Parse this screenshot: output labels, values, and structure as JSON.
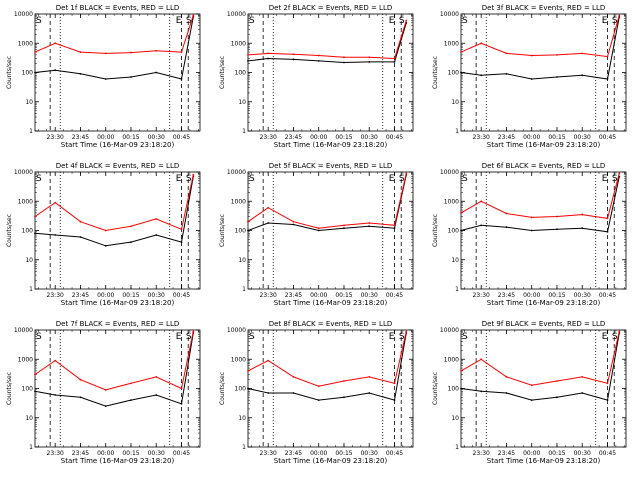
{
  "figure": {
    "ylabel": "Counts/sec",
    "xlabel": "Start Time (16-Mar-09 23:18:20)",
    "y_tick_labels": [
      "1",
      "10",
      "100",
      "1000",
      "10000"
    ],
    "x_tick_labels": [
      "23:30",
      "23:45",
      "00:00",
      "00:15",
      "00:30",
      "00:45"
    ],
    "colors": {
      "events": "#000000",
      "lld": "#ff0000"
    }
  },
  "chart_data": [
    {
      "type": "line",
      "title": "Det 1f BLACK = Events, RED = LLD",
      "yscale": "log",
      "ylim": [
        1,
        10000
      ],
      "x": [
        "23:18",
        "23:30",
        "23:45",
        "00:00",
        "00:15",
        "00:30",
        "00:45",
        "00:52"
      ],
      "series": [
        {
          "name": "Events",
          "values": [
            100,
            120,
            90,
            60,
            70,
            100,
            60,
            8000
          ]
        },
        {
          "name": "LLD",
          "values": [
            500,
            1000,
            500,
            450,
            480,
            550,
            500,
            9000
          ]
        }
      ],
      "markers": [
        "S",
        "E",
        "S"
      ]
    },
    {
      "type": "line",
      "title": "Det 2f BLACK = Events, RED = LLD",
      "yscale": "log",
      "ylim": [
        1,
        10000
      ],
      "x": [
        "23:18",
        "23:30",
        "23:45",
        "00:00",
        "00:15",
        "00:30",
        "00:45",
        "00:52"
      ],
      "series": [
        {
          "name": "Events",
          "values": [
            250,
            300,
            280,
            250,
            220,
            230,
            230,
            5000
          ]
        },
        {
          "name": "LLD",
          "values": [
            400,
            450,
            420,
            380,
            330,
            330,
            300,
            6000
          ]
        }
      ],
      "markers": [
        "S",
        "E",
        "S"
      ]
    },
    {
      "type": "line",
      "title": "Det 3f BLACK = Events, RED = LLD",
      "yscale": "log",
      "ylim": [
        1,
        10000
      ],
      "x": [
        "23:18",
        "23:30",
        "23:45",
        "00:00",
        "00:15",
        "00:30",
        "00:45",
        "00:52"
      ],
      "series": [
        {
          "name": "Events",
          "values": [
            100,
            80,
            90,
            60,
            70,
            80,
            60,
            8000
          ]
        },
        {
          "name": "LLD",
          "values": [
            500,
            1000,
            450,
            380,
            400,
            450,
            350,
            9000
          ]
        }
      ],
      "markers": [
        "S",
        "E",
        "S"
      ]
    },
    {
      "type": "line",
      "title": "Det 4f BLACK = Events, RED = LLD",
      "yscale": "log",
      "ylim": [
        1,
        10000
      ],
      "x": [
        "23:18",
        "23:30",
        "23:45",
        "00:00",
        "00:15",
        "00:30",
        "00:45",
        "00:52"
      ],
      "series": [
        {
          "name": "Events",
          "values": [
            80,
            70,
            60,
            30,
            40,
            70,
            40,
            7000
          ]
        },
        {
          "name": "LLD",
          "values": [
            300,
            900,
            200,
            100,
            140,
            250,
            110,
            8000
          ]
        }
      ],
      "markers": [
        "S",
        "E",
        "S"
      ]
    },
    {
      "type": "line",
      "title": "Det 5f BLACK = Events, RED = LLD",
      "yscale": "log",
      "ylim": [
        1,
        10000
      ],
      "x": [
        "23:18",
        "23:30",
        "23:45",
        "00:00",
        "00:15",
        "00:30",
        "00:45",
        "00:52"
      ],
      "series": [
        {
          "name": "Events",
          "values": [
            100,
            180,
            160,
            100,
            120,
            140,
            120,
            8000
          ]
        },
        {
          "name": "LLD",
          "values": [
            200,
            600,
            200,
            120,
            150,
            180,
            150,
            9000
          ]
        }
      ],
      "markers": [
        "S",
        "E",
        "S"
      ]
    },
    {
      "type": "line",
      "title": "Det 6f BLACK = Events, RED = LLD",
      "yscale": "log",
      "ylim": [
        1,
        10000
      ],
      "x": [
        "23:18",
        "23:30",
        "23:45",
        "00:00",
        "00:15",
        "00:30",
        "00:45",
        "00:52"
      ],
      "series": [
        {
          "name": "Events",
          "values": [
            100,
            150,
            130,
            100,
            110,
            120,
            90,
            7000
          ]
        },
        {
          "name": "LLD",
          "values": [
            400,
            1000,
            380,
            280,
            300,
            350,
            260,
            9000
          ]
        }
      ],
      "markers": [
        "S",
        "E",
        "S"
      ]
    },
    {
      "type": "line",
      "title": "Det 7f BLACK = Events, RED = LLD",
      "yscale": "log",
      "ylim": [
        1,
        10000
      ],
      "x": [
        "23:18",
        "23:30",
        "23:45",
        "00:00",
        "00:15",
        "00:30",
        "00:45",
        "00:52"
      ],
      "series": [
        {
          "name": "Events",
          "values": [
            80,
            60,
            50,
            25,
            40,
            60,
            30,
            8000
          ]
        },
        {
          "name": "LLD",
          "values": [
            300,
            900,
            200,
            90,
            150,
            250,
            100,
            9000
          ]
        }
      ],
      "markers": [
        "S",
        "E",
        "S"
      ]
    },
    {
      "type": "line",
      "title": "Det 8f BLACK = Events, RED = LLD",
      "yscale": "log",
      "ylim": [
        1,
        10000
      ],
      "x": [
        "23:18",
        "23:30",
        "23:45",
        "00:00",
        "00:15",
        "00:30",
        "00:45",
        "00:52"
      ],
      "series": [
        {
          "name": "Events",
          "values": [
            100,
            70,
            70,
            40,
            50,
            70,
            40,
            8000
          ]
        },
        {
          "name": "LLD",
          "values": [
            400,
            900,
            250,
            120,
            180,
            250,
            150,
            9000
          ]
        }
      ],
      "markers": [
        "S",
        "E",
        "S"
      ]
    },
    {
      "type": "line",
      "title": "Det 9f BLACK = Events, RED = LLD",
      "yscale": "log",
      "ylim": [
        1,
        10000
      ],
      "x": [
        "23:18",
        "23:30",
        "23:45",
        "00:00",
        "00:15",
        "00:30",
        "00:45",
        "00:52"
      ],
      "series": [
        {
          "name": "Events",
          "values": [
            100,
            80,
            70,
            40,
            50,
            70,
            40,
            8000
          ]
        },
        {
          "name": "LLD",
          "values": [
            400,
            1000,
            250,
            130,
            180,
            250,
            150,
            9000
          ]
        }
      ],
      "markers": [
        "S",
        "E",
        "S"
      ]
    }
  ]
}
